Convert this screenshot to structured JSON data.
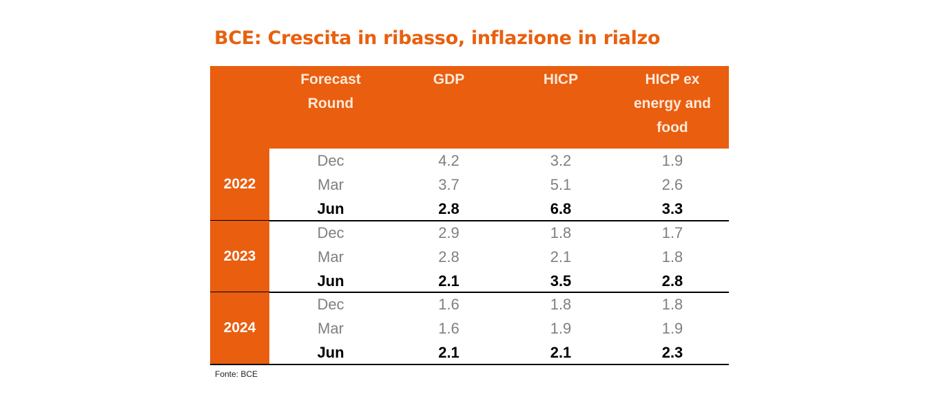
{
  "title": "BCE: Crescita in ribasso, inflazione in rialzo",
  "source": "Fonte: BCE",
  "colors": {
    "accent": "#E95E0F",
    "header_text": "#FFE9DA",
    "muted": "#7F7F7F"
  },
  "chart_data": {
    "type": "table",
    "title": "BCE: Crescita in ribasso, inflazione in rialzo",
    "columns": [
      "",
      "Forecast Round",
      "GDP",
      "HICP",
      "HICP ex energy and food"
    ],
    "groups": [
      {
        "year": "2022",
        "rows": [
          {
            "round": "Dec",
            "gdp": "4.2",
            "hicp": "3.2",
            "core": "1.9"
          },
          {
            "round": "Mar",
            "gdp": "3.7",
            "hicp": "5.1",
            "core": "2.6"
          },
          {
            "round": "Jun",
            "gdp": "2.8",
            "hicp": "6.8",
            "core": "3.3",
            "bold": true
          }
        ]
      },
      {
        "year": "2023",
        "rows": [
          {
            "round": "Dec",
            "gdp": "2.9",
            "hicp": "1.8",
            "core": "1.7"
          },
          {
            "round": "Mar",
            "gdp": "2.8",
            "hicp": "2.1",
            "core": "1.8"
          },
          {
            "round": "Jun",
            "gdp": "2.1",
            "hicp": "3.5",
            "core": "2.8",
            "bold": true
          }
        ]
      },
      {
        "year": "2024",
        "rows": [
          {
            "round": "Dec",
            "gdp": "1.6",
            "hicp": "1.8",
            "core": "1.8"
          },
          {
            "round": "Mar",
            "gdp": "1.6",
            "hicp": "1.9",
            "core": "1.9"
          },
          {
            "round": "Jun",
            "gdp": "2.1",
            "hicp": "2.1",
            "core": "2.3",
            "bold": true
          }
        ]
      }
    ],
    "source": "Fonte: BCE"
  }
}
